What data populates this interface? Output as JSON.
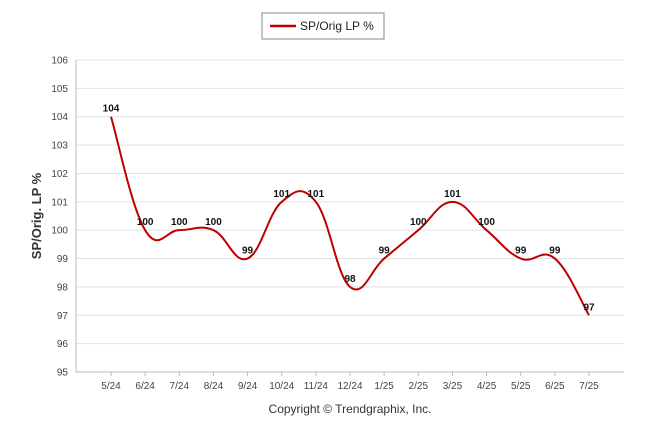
{
  "chart_data": {
    "type": "line",
    "title": "",
    "xlabel": "",
    "ylabel": "SP/Orig. LP %",
    "categories": [
      "5/24",
      "6/24",
      "7/24",
      "8/24",
      "9/24",
      "10/24",
      "11/24",
      "12/24",
      "1/25",
      "2/25",
      "3/25",
      "4/25",
      "5/25",
      "6/25",
      "7/25"
    ],
    "series": [
      {
        "name": "SP/Orig LP %",
        "color": "#c00000",
        "values": [
          104,
          100,
          100,
          100,
          99,
          101,
          101,
          98,
          99,
          100,
          101,
          100,
          99,
          99,
          97
        ]
      }
    ],
    "ylim": [
      95,
      106
    ],
    "yticks": [
      95,
      96,
      97,
      98,
      99,
      100,
      101,
      102,
      103,
      104,
      105,
      106
    ],
    "grid": true,
    "legend_position": "top-center",
    "footer": "Copyright © Trendgraphix, Inc."
  }
}
